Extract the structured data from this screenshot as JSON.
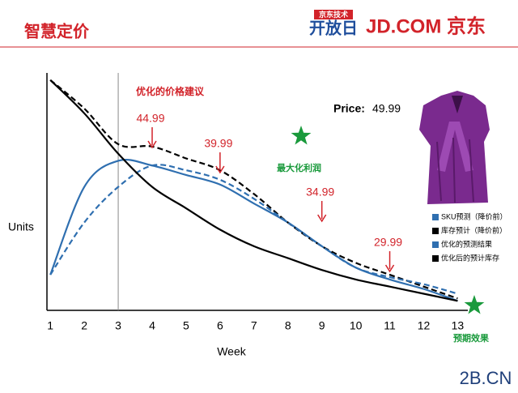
{
  "header": {
    "title": "智慧定价",
    "logo_top": "京东技术",
    "logo_main": "开放日",
    "brand": "JD.COM 京东"
  },
  "chart_data": {
    "type": "line",
    "xlabel": "Week",
    "ylabel": "Units",
    "x": [
      1,
      2,
      3,
      4,
      5,
      6,
      7,
      8,
      9,
      10,
      11,
      12,
      13
    ],
    "xlim": [
      0.9,
      13.3
    ],
    "ylim": [
      0,
      100
    ],
    "xticks": [
      1,
      2,
      3,
      4,
      5,
      6,
      7,
      8,
      9,
      10,
      11,
      12,
      13
    ],
    "vline_x": 3,
    "series": [
      {
        "name": "SKU预测（降价前）",
        "color": "#2f6fb0",
        "dashed": false,
        "values": [
          15,
          52,
          63,
          61,
          57,
          53,
          45,
          37,
          27,
          18,
          13,
          9,
          4
        ]
      },
      {
        "name": "库存预计（降价前）",
        "color": "#000000",
        "dashed": true,
        "values": [
          97,
          85,
          70,
          69,
          64,
          59,
          49,
          37,
          27,
          20,
          15,
          10,
          5
        ]
      },
      {
        "name": "优化的预测结果",
        "color": "#2f6fb0",
        "dashed": true,
        "values": [
          15,
          37,
          52,
          61,
          59,
          55,
          47,
          37,
          27,
          18,
          14,
          11,
          7
        ]
      },
      {
        "name": "优化后的预计库存",
        "color": "#000000",
        "dashed": false,
        "values": [
          97,
          83,
          66,
          52,
          43,
          34,
          27,
          22,
          17,
          13,
          10,
          7,
          4
        ]
      }
    ],
    "annotation_title": "优化的价格建议",
    "price_annotations": [
      {
        "x": 4,
        "price": 44.99
      },
      {
        "x": 6,
        "price": 39.99
      },
      {
        "x": 9,
        "price": 34.99
      },
      {
        "x": 11,
        "price": 29.99
      }
    ],
    "product": {
      "label": "Price:",
      "price": 49.99
    },
    "callouts": [
      "最大化利润",
      "预期效果"
    ]
  },
  "watermark": "2B.CN"
}
